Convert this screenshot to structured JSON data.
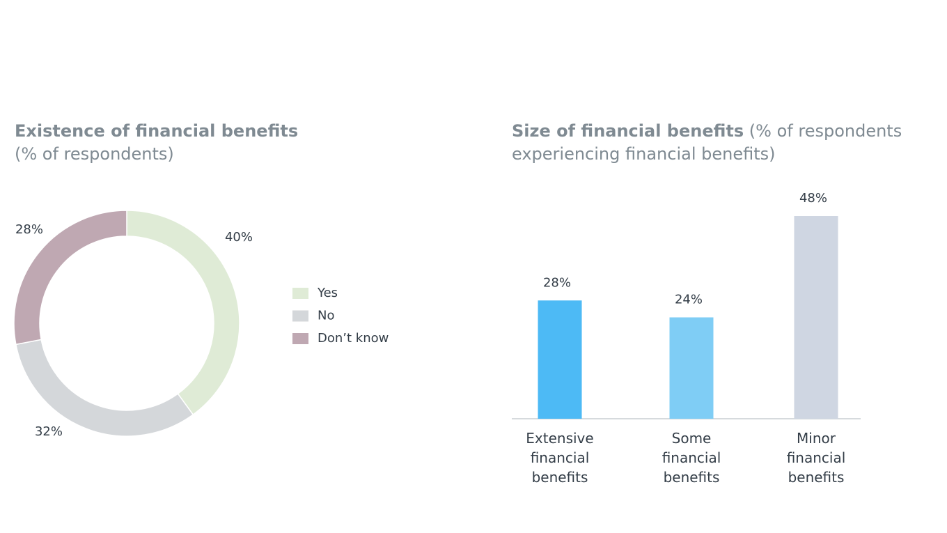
{
  "chart_data": [
    {
      "type": "donut",
      "title": "Existence of financial benefits",
      "subtitle": "(% of respondents)",
      "categories": [
        "Yes",
        "No",
        "Don’t know"
      ],
      "values": [
        40,
        32,
        28
      ],
      "value_labels": [
        "40%",
        "32%",
        "28%"
      ],
      "colors": [
        "#dfebd6",
        "#d4d7da",
        "#bfa8b2"
      ]
    },
    {
      "type": "bar",
      "title": "Size of financial benefits",
      "subtitle": "(% of respondents experiencing financial benefits)",
      "categories": [
        "Extensive financial benefits",
        "Some financial benefits",
        "Minor financial benefits"
      ],
      "values": [
        28,
        24,
        48
      ],
      "value_labels": [
        "28%",
        "24%",
        "48%"
      ],
      "colors": [
        "#4dbaf5",
        "#7fcdf5",
        "#cfd6e2"
      ]
    }
  ]
}
